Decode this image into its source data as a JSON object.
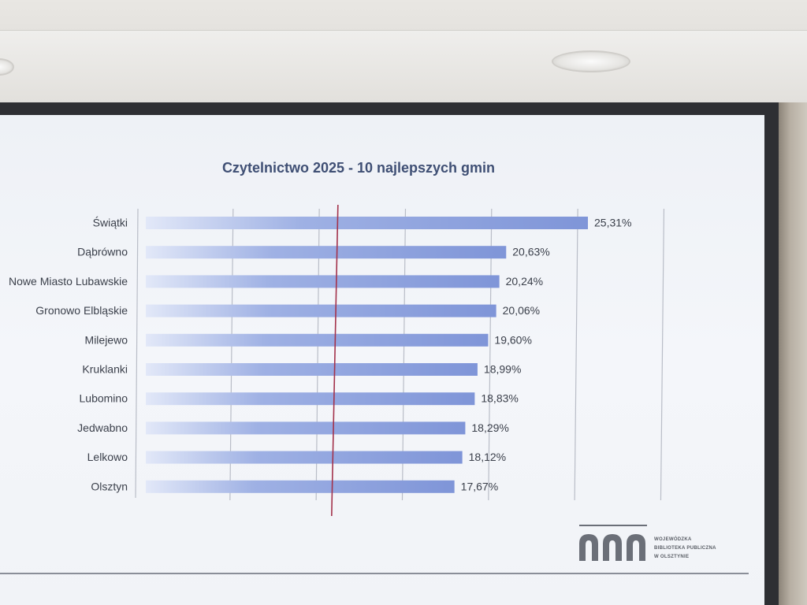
{
  "chart_data": {
    "type": "bar",
    "orientation": "horizontal",
    "title": "Czytelnictwo 2025 - 10 najlepszych gmin",
    "categories": [
      "Świątki",
      "Dąbrówno",
      "Nowe Miasto Lubawskie",
      "Gronowo Elbląskie",
      "Milejewo",
      "Kruklanki",
      "Lubomino",
      "Jedwabno",
      "Lelkowo",
      "Olsztyn"
    ],
    "values": [
      25.31,
      20.63,
      20.24,
      20.06,
      19.6,
      18.99,
      18.83,
      18.29,
      18.12,
      17.67
    ],
    "data_labels": [
      "25,31%",
      "20,63%",
      "20,24%",
      "20,06%",
      "19,60%",
      "18,99%",
      "18,83%",
      "18,29%",
      "18,12%",
      "17,67%"
    ],
    "xlim": [
      0,
      30
    ],
    "reference_line": 11,
    "grid": true,
    "colors": {
      "bar": "#7f95d8",
      "bar_light": "#d6def5",
      "reference_line": "#a3324b",
      "grid": "#b9bdc7",
      "text": "#3a3f4a"
    }
  },
  "logo": {
    "icon": "library-arches-icon",
    "text_lines": [
      "WOJEWÓDZKA",
      "BIBLIOTEKA PUBLICZNA",
      "W OLSZTYNIE"
    ]
  }
}
